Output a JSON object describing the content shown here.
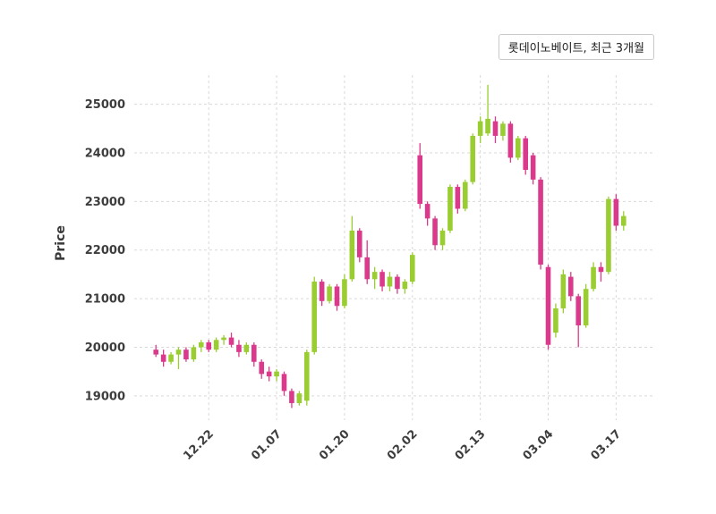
{
  "chart_data": {
    "type": "candlestick",
    "title": "롯데이노베이트, 최근 3개월",
    "ylabel": "Price",
    "ylim": [
      18500,
      25600
    ],
    "yticks": [
      19000,
      20000,
      21000,
      22000,
      23000,
      24000,
      25000
    ],
    "xtick_labels": [
      "12.22",
      "01.07",
      "01.20",
      "02.02",
      "02.13",
      "03.04",
      "03.17"
    ],
    "xtick_indices": [
      7,
      16,
      25,
      34,
      43,
      52,
      61
    ],
    "grid": true,
    "legend_position": "top-right",
    "up_color": "#9ACD32",
    "down_color": "#DB3A8C",
    "grid_color": "#d9d9d9",
    "tick_color": "#3d3d3d",
    "background_color": "#ffffff",
    "candles": [
      [
        19950,
        20050,
        19800,
        19850
      ],
      [
        19850,
        19950,
        19600,
        19700
      ],
      [
        19700,
        19900,
        19650,
        19850
      ],
      [
        19850,
        20000,
        19550,
        19950
      ],
      [
        19950,
        20000,
        19700,
        19750
      ],
      [
        19750,
        20050,
        19700,
        20000
      ],
      [
        20000,
        20150,
        19900,
        20100
      ],
      [
        20100,
        20150,
        19900,
        19950
      ],
      [
        19950,
        20200,
        19900,
        20150
      ],
      [
        20150,
        20250,
        20050,
        20200
      ],
      [
        20200,
        20300,
        20000,
        20050
      ],
      [
        20050,
        20150,
        19800,
        19900
      ],
      [
        19900,
        20100,
        19850,
        20050
      ],
      [
        20050,
        20100,
        19600,
        19700
      ],
      [
        19700,
        19750,
        19350,
        19450
      ],
      [
        19500,
        19600,
        19300,
        19400
      ],
      [
        19400,
        19550,
        19300,
        19500
      ],
      [
        19450,
        19500,
        19000,
        19100
      ],
      [
        19100,
        19150,
        18750,
        18850
      ],
      [
        18850,
        19100,
        18800,
        19050
      ],
      [
        18900,
        19950,
        18800,
        19900
      ],
      [
        19900,
        21450,
        19850,
        21350
      ],
      [
        21350,
        21400,
        20850,
        20950
      ],
      [
        20950,
        21300,
        20900,
        21250
      ],
      [
        21250,
        21300,
        20750,
        20850
      ],
      [
        20850,
        21500,
        20800,
        21400
      ],
      [
        21400,
        22700,
        21350,
        22400
      ],
      [
        22400,
        22450,
        21750,
        21850
      ],
      [
        21850,
        22200,
        21300,
        21400
      ],
      [
        21400,
        21650,
        21200,
        21550
      ],
      [
        21550,
        21600,
        21150,
        21250
      ],
      [
        21250,
        21550,
        21150,
        21450
      ],
      [
        21450,
        21500,
        21100,
        21200
      ],
      [
        21200,
        21400,
        21100,
        21350
      ],
      [
        21350,
        21950,
        21300,
        21900
      ],
      [
        23950,
        24200,
        22850,
        22950
      ],
      [
        22950,
        23000,
        22500,
        22650
      ],
      [
        22650,
        22700,
        22000,
        22100
      ],
      [
        22100,
        22450,
        22000,
        22400
      ],
      [
        22400,
        23350,
        22350,
        23300
      ],
      [
        23300,
        23350,
        22750,
        22850
      ],
      [
        22850,
        23450,
        22800,
        23400
      ],
      [
        23400,
        24400,
        23350,
        24350
      ],
      [
        24350,
        24750,
        24200,
        24650
      ],
      [
        24400,
        25400,
        24350,
        24700
      ],
      [
        24650,
        24750,
        24200,
        24350
      ],
      [
        24350,
        24650,
        24250,
        24600
      ],
      [
        24600,
        24650,
        23800,
        23900
      ],
      [
        23900,
        24350,
        23850,
        24300
      ],
      [
        24300,
        24350,
        23550,
        23650
      ],
      [
        23950,
        24000,
        23350,
        23450
      ],
      [
        23450,
        23500,
        21600,
        21700
      ],
      [
        21650,
        21700,
        19950,
        20050
      ],
      [
        20300,
        20900,
        20200,
        20800
      ],
      [
        20800,
        21600,
        20700,
        21500
      ],
      [
        21450,
        21550,
        20950,
        21050
      ],
      [
        21050,
        21100,
        20000,
        20450
      ],
      [
        20450,
        21300,
        20400,
        21200
      ],
      [
        21200,
        21750,
        21150,
        21650
      ],
      [
        21650,
        21750,
        21350,
        21550
      ],
      [
        21550,
        23100,
        21500,
        23050
      ],
      [
        23050,
        23150,
        22400,
        22500
      ],
      [
        22500,
        22800,
        22400,
        22700
      ]
    ]
  }
}
